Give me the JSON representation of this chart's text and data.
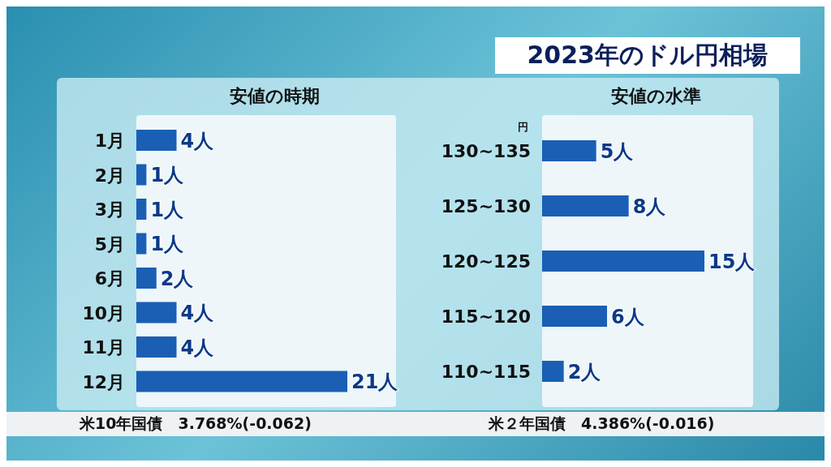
{
  "chart_data": [
    {
      "type": "bar",
      "orientation": "horizontal",
      "subtitle": "安値の時期",
      "categories": [
        "1月",
        "2月",
        "3月",
        "5月",
        "6月",
        "10月",
        "11月",
        "12月"
      ],
      "values": [
        4,
        1,
        1,
        1,
        2,
        4,
        4,
        21
      ],
      "value_labels": [
        "4人",
        "1人",
        "1人",
        "1人",
        "2人",
        "4人",
        "4人",
        "21人"
      ],
      "color": "#1a5fb4",
      "annotations": [
        "米10年国債　3.768%(-0.062)"
      ]
    },
    {
      "type": "bar",
      "orientation": "horizontal",
      "title": "2023年のドル円相場",
      "subtitle": "安値の水準",
      "ylabel": "円",
      "categories": [
        "130~135",
        "125~130",
        "120~125",
        "115~120",
        "110~115"
      ],
      "values": [
        5,
        8,
        15,
        6,
        2
      ],
      "value_labels": [
        "5人",
        "8人",
        "15人",
        "6人",
        "2人"
      ],
      "color": "#1a5fb4",
      "annotations": [
        "米２年国債　4.386%(-0.016)"
      ]
    }
  ]
}
